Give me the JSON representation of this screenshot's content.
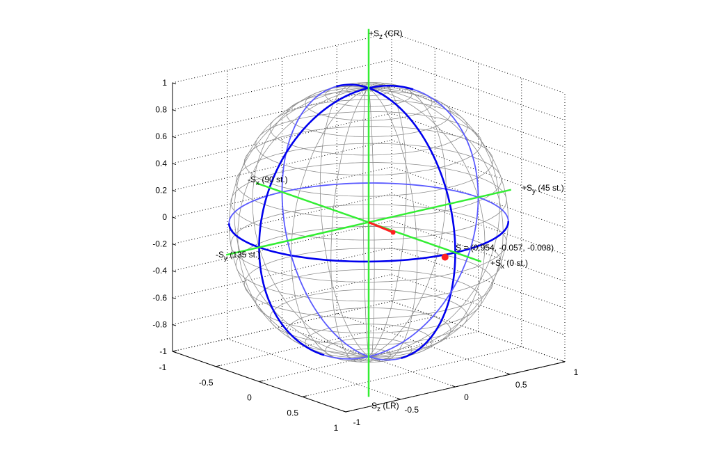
{
  "chart_data": {
    "type": "scatter",
    "projection": "3d",
    "grid": true,
    "colors": {
      "sphere_mesh": "#8c8c8c",
      "great_circles": "#0000ee",
      "great_circles_back": "#5a5aff",
      "axes": "#33ee33",
      "point": "#ff2020"
    },
    "xlim": [
      -1,
      1
    ],
    "ylim": [
      -1,
      1
    ],
    "zlim": [
      -1,
      1
    ],
    "x_ticks": [
      "-1",
      "-0.5",
      "0",
      "0.5",
      "1"
    ],
    "y_ticks": [
      "-1",
      "-0.5",
      "0",
      "0.5",
      "1"
    ],
    "z_ticks": [
      "1",
      "0.8",
      "0.6",
      "0.4",
      "0.2",
      "0",
      "-0.2",
      "-0.4",
      "-0.6",
      "-0.8",
      "-1"
    ],
    "axis_labels": {
      "plus_sz": {
        "main": "+S",
        "sub": "z",
        "rest": " (CR)"
      },
      "minus_sz": {
        "main": "-S",
        "sub": "z",
        "rest": " (LR)"
      },
      "plus_sx": {
        "main": "+S",
        "sub": "x",
        "rest": " (0 st.)"
      },
      "minus_sx": {
        "main": "-S",
        "sub": "x",
        "rest": " (90 st.)"
      },
      "plus_sy": {
        "main": "+S",
        "sub": "y",
        "rest": " (45 st.)"
      },
      "minus_sy": {
        "main": "-S",
        "sub": "y",
        "rest": " (135 st.)"
      }
    },
    "point": {
      "x": 0.954,
      "y": -0.057,
      "z": -0.008,
      "label": "S = (0.954, -0.057, -0.008)"
    }
  }
}
